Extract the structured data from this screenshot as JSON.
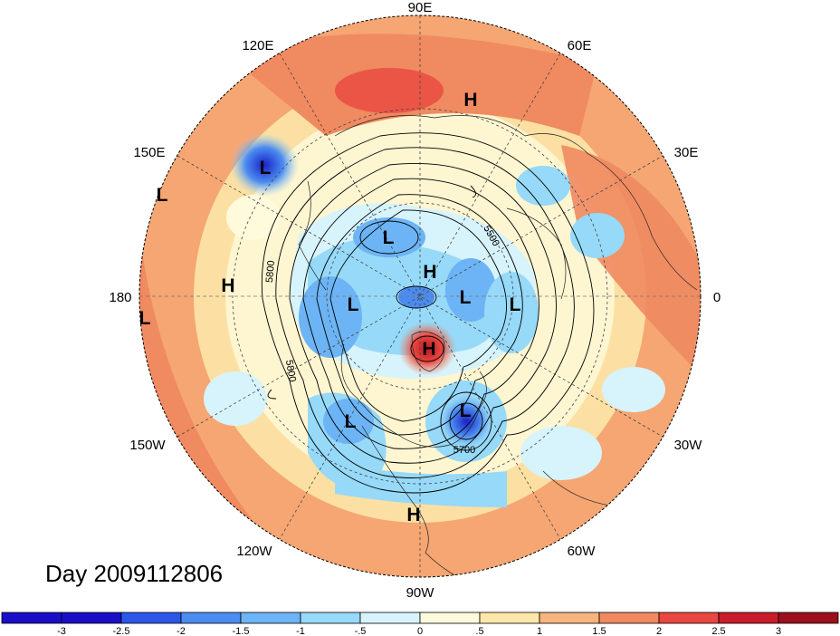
{
  "title": "Day 2009112806",
  "longitude_labels": [
    {
      "id": "lon-90e",
      "text": "90E"
    },
    {
      "id": "lon-60e",
      "text": "60E"
    },
    {
      "id": "lon-120e",
      "text": "120E"
    },
    {
      "id": "lon-150e",
      "text": "150E"
    },
    {
      "id": "lon-30e",
      "text": "30E"
    },
    {
      "id": "lon-180",
      "text": "180"
    },
    {
      "id": "lon-0",
      "text": "0"
    },
    {
      "id": "lon-150w",
      "text": "150W"
    },
    {
      "id": "lon-30w",
      "text": "30W"
    },
    {
      "id": "lon-120w",
      "text": "120W"
    },
    {
      "id": "lon-60w",
      "text": "60W"
    },
    {
      "id": "lon-90w",
      "text": "90W"
    }
  ],
  "pressure_centers": [
    {
      "id": "h-siberia",
      "text": "H"
    },
    {
      "id": "l-kamchatka",
      "text": "L"
    },
    {
      "id": "l-westpac",
      "text": "L"
    },
    {
      "id": "h-dateline",
      "text": "H"
    },
    {
      "id": "l-dateline-edge",
      "text": "L"
    },
    {
      "id": "l-arctic-asia",
      "text": "L"
    },
    {
      "id": "h-arctic",
      "text": "H"
    },
    {
      "id": "l-beaufort",
      "text": "L"
    },
    {
      "id": "l-pole",
      "text": "L"
    },
    {
      "id": "l-atlantic-n",
      "text": "L"
    },
    {
      "id": "h-greenland",
      "text": "H"
    },
    {
      "id": "l-nw-america",
      "text": "L"
    },
    {
      "id": "l-east-us",
      "text": "L"
    },
    {
      "id": "h-mexico",
      "text": "H"
    }
  ],
  "contour_labels": [
    {
      "id": "c-5500",
      "text": "5500"
    },
    {
      "id": "c-5800-a",
      "text": "5800"
    },
    {
      "id": "c-5800-b",
      "text": "5800"
    },
    {
      "id": "c-5700",
      "text": "5700"
    }
  ],
  "colorbar": {
    "labels": [
      "-3",
      "-2.5",
      "-2",
      "-1.5",
      "-1",
      "-.5",
      "0",
      ".5",
      "1",
      "1.5",
      "2",
      "2.5",
      "3"
    ],
    "colors": [
      "#1a0fc8",
      "#2d57e8",
      "#4b8cf0",
      "#6cb4f5",
      "#96d9f8",
      "#d7f3fb",
      "#fefadc",
      "#fde7a8",
      "#f7b47e",
      "#f08a60",
      "#e9473f",
      "#c91c2a",
      "#9c0f1c"
    ]
  },
  "colors": {
    "warm_background": "#f5a673",
    "cool_anomaly": "#8fcdf4",
    "strong_low": "#2b3fd8",
    "strong_high": "#d9402e",
    "contour": "#000000"
  }
}
